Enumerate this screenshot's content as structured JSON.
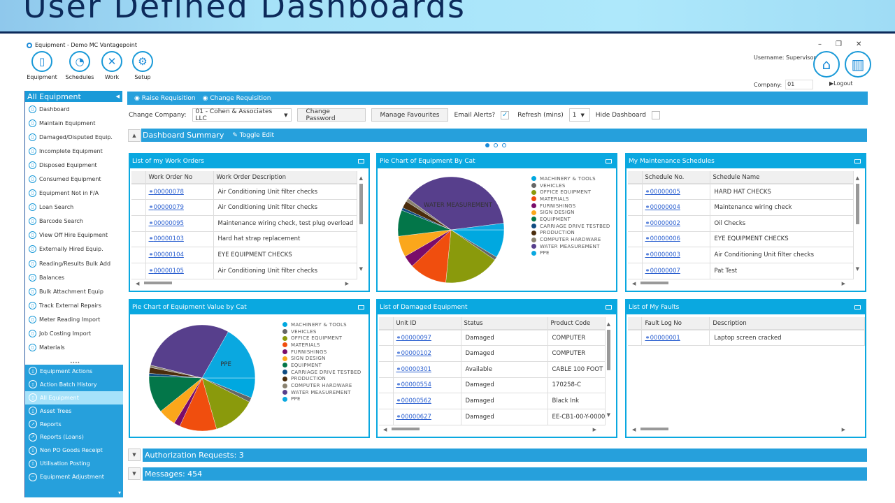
{
  "banner": {
    "title": "User Defined Dashboards"
  },
  "window": {
    "title": "Equipment - Demo MC Vantagepoint",
    "minimize": "–",
    "restore": "❐",
    "close": "✕"
  },
  "ribbon": [
    {
      "label": "Equipment",
      "icon": "phone-icon",
      "glyph": "▯"
    },
    {
      "label": "Schedules",
      "icon": "stopwatch-icon",
      "glyph": "◔"
    },
    {
      "label": "Work",
      "icon": "tools-icon",
      "glyph": "✕"
    },
    {
      "label": "Setup",
      "icon": "gears-icon",
      "glyph": "⚙"
    }
  ],
  "user": {
    "username": "Username: Supervisor",
    "company_label": "Company:",
    "company_value": "01",
    "logout": "Logout",
    "home_glyph": "⌂",
    "dash_glyph": "▥"
  },
  "sidebar": {
    "title": "All Equipment",
    "items": [
      "Dashboard",
      "Maintain Equipment",
      "Damaged/Disputed Equip.",
      "Incomplete Equipment",
      "Disposed Equipment",
      "Consumed Equipment",
      "Equipment Not in F/A",
      "Loan Search",
      "Barcode Search",
      "View Off Hire Equipment",
      "Externally Hired Equip.",
      "Reading/Results Bulk Add",
      "Balances",
      "Bulk Attachment Equip",
      "Track External Repairs",
      "Meter Reading Import",
      "Job Costing Import",
      "Materials"
    ],
    "modules": [
      "Equipment Actions",
      "Action Batch History",
      "All Equipment",
      "Asset Trees",
      "Reports",
      "Reports (Loans)",
      "Non PO Goods Receipt",
      "Utilisation Posting",
      "Equipment Adjustment"
    ],
    "selected_module": "All Equipment"
  },
  "toolbar": {
    "raise": "Raise Requisition",
    "change": "Change Requisition"
  },
  "controls": {
    "change_company_label": "Change Company:",
    "company": "01 - Cohen & Associates LLC",
    "change_password": "Change Password",
    "manage_favourites": "Manage Favourites",
    "email_alerts_label": "Email Alerts?",
    "email_alerts": true,
    "refresh_label": "Refresh (mins)",
    "refresh": "1",
    "hide_dashboard_label": "Hide Dashboard",
    "hide_dashboard": false
  },
  "dashboard": {
    "title": "Dashboard Summary",
    "toggle_edit": "Toggle Edit",
    "page": 1,
    "pages": 3
  },
  "work_orders": {
    "title": "List of my Work Orders",
    "columns": [
      "Work Order No",
      "Work Order Description"
    ],
    "rows": [
      [
        "00000078",
        "Air Conditioning Unit filter checks"
      ],
      [
        "00000079",
        "Air Conditioning Unit filter checks"
      ],
      [
        "00000095",
        "Maintenance wiring check, test plug overload"
      ],
      [
        "00000103",
        "Hard hat strap replacement"
      ],
      [
        "00000104",
        "EYE EQUIPMENT CHECKS"
      ],
      [
        "00000105",
        "Air Conditioning Unit filter checks"
      ]
    ]
  },
  "schedules": {
    "title": "My Maintenance Schedules",
    "columns": [
      "Schedule No.",
      "Schedule Name"
    ],
    "rows": [
      [
        "00000005",
        "HARD HAT CHECKS"
      ],
      [
        "00000004",
        "Maintenance wiring check"
      ],
      [
        "00000002",
        "Oil Checks"
      ],
      [
        "00000006",
        "EYE EQUIPMENT CHECKS"
      ],
      [
        "00000003",
        "Air Conditioning Unit filter checks"
      ],
      [
        "00000007",
        "Pat Test"
      ]
    ]
  },
  "damaged": {
    "title": "List of Damaged Equipment",
    "columns": [
      "Unit ID",
      "Status",
      "Product Code"
    ],
    "rows": [
      [
        "00000097",
        "Damaged",
        "COMPUTER"
      ],
      [
        "00000102",
        "Damaged",
        "COMPUTER"
      ],
      [
        "00000301",
        "Available",
        "CABLE 100 FOOT"
      ],
      [
        "00000554",
        "Damaged",
        "170258-C"
      ],
      [
        "00000562",
        "Damaged",
        "Black Ink"
      ],
      [
        "00000627",
        "Damaged",
        "EE-CB1-00-Y-0000"
      ]
    ]
  },
  "faults": {
    "title": "List of My Faults",
    "columns": [
      "Fault Log No",
      "Description"
    ],
    "rows": [
      [
        "00000001",
        "Laptop screen cracked"
      ]
    ]
  },
  "sections": {
    "auth": "Authorization Requests: 3",
    "messages": "Messages: 454"
  },
  "chart_data": [
    {
      "type": "pie",
      "title": "Pie Chart of Equipment By Cat",
      "slice_label": "WATER MEASUREMENT",
      "legend": "right",
      "categories": [
        "MACHINERY & TOOLS",
        "VEHICLES",
        "OFFICE EQUIPMENT",
        "MATERIALS",
        "FURNISHINGS",
        "SIGN DESIGN",
        "EQUIPMENT",
        "CARRIAGE DRIVE TESTBED",
        "PRODUCTION",
        "COMPUTER HARDWARE",
        "WATER MEASUREMENT",
        "PPE"
      ],
      "values": [
        8.6,
        1,
        17,
        11.5,
        3.6,
        6.4,
        8,
        0.8,
        2.2,
        1,
        38,
        2
      ],
      "colors": [
        "#00a8e0",
        "#666666",
        "#8a9a0c",
        "#f04e0e",
        "#7a0c6a",
        "#fba71b",
        "#037649",
        "#0f4c81",
        "#4a2c0c",
        "#8a8270",
        "#573f8c",
        "#0aa8e0"
      ]
    },
    {
      "type": "pie",
      "title": "Pie Chart of Equipment Value by Cat",
      "slice_label": "PPE",
      "legend": "right",
      "categories": [
        "MACHINERY & TOOLS",
        "VEHICLES",
        "OFFICE EQUIPMENT",
        "MATERIALS",
        "FURNISHINGS",
        "SIGN DESIGN",
        "EQUIPMENT",
        "CARRIAGE DRIVE TESTBED",
        "PRODUCTION",
        "COMPUTER HARDWARE",
        "WATER MEASUREMENT",
        "PPE"
      ],
      "values": [
        6.1,
        1.4,
        13.1,
        11.3,
        1.9,
        5.4,
        11.4,
        0.8,
        1.8,
        0.7,
        29.3,
        16.8
      ],
      "colors": [
        "#00a8e0",
        "#666666",
        "#8a9a0c",
        "#f04e0e",
        "#7a0c6a",
        "#fba71b",
        "#037649",
        "#0f4c81",
        "#4a2c0c",
        "#8a8270",
        "#573f8c",
        "#0aa8e0"
      ]
    }
  ]
}
